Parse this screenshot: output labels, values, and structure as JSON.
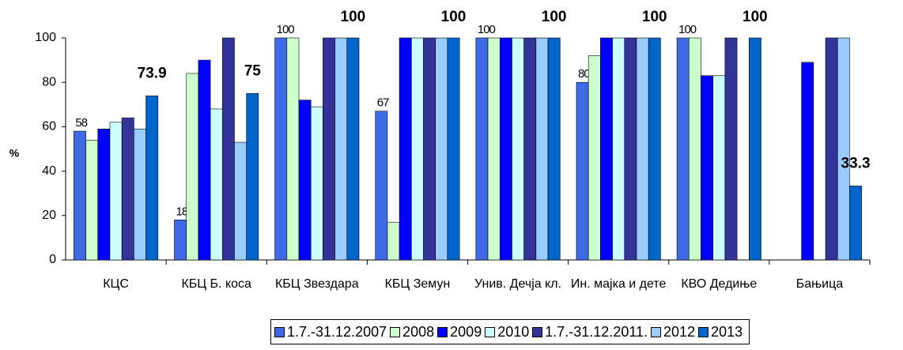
{
  "chart_data": {
    "type": "bar",
    "y_label": "%",
    "categories": [
      "КЦС",
      "КБЦ Б. коса",
      "КБЦ Звездара",
      "КБЦ Земун",
      "Унив. Дечја кл.",
      "Ин. мајка и дете",
      "КВО Дедиње",
      "Бањица"
    ],
    "ylim": [
      0,
      100
    ],
    "yticks": [
      0,
      20,
      40,
      60,
      80,
      100
    ],
    "grid": false,
    "legend": "bottom",
    "series": [
      {
        "name": "1.7.-31.12.2007",
        "color": "#3f6ae6",
        "values": [
          58,
          18,
          100,
          67,
          100,
          80,
          100,
          null
        ],
        "value_labels": [
          "58",
          "18",
          "100",
          "67",
          "100",
          "80",
          "100",
          null
        ]
      },
      {
        "name": "2008",
        "color": "#ccffcc",
        "values": [
          54,
          84,
          100,
          17,
          100,
          92,
          100,
          null
        ]
      },
      {
        "name": "2009",
        "color": "#0000ff",
        "values": [
          59,
          90,
          72,
          100,
          100,
          100,
          83,
          89
        ]
      },
      {
        "name": "2010",
        "color": "#ccffff",
        "values": [
          62,
          68,
          69,
          100,
          100,
          100,
          83,
          null
        ]
      },
      {
        "name": "1.7.-31.12.2011.",
        "color": "#333399",
        "values": [
          64,
          100,
          100,
          100,
          100,
          100,
          100,
          100
        ]
      },
      {
        "name": "2012",
        "color": "#99ccff",
        "values": [
          59,
          53,
          100,
          100,
          100,
          100,
          null,
          100
        ]
      },
      {
        "name": "2013",
        "color": "#0066cc",
        "values": [
          73.9,
          75,
          100,
          100,
          100,
          100,
          100,
          33.3
        ],
        "value_labels": [
          "73.9",
          "75",
          "100",
          "100",
          "100",
          "100",
          "100",
          "33.3"
        ],
        "label_bold": true
      }
    ]
  }
}
